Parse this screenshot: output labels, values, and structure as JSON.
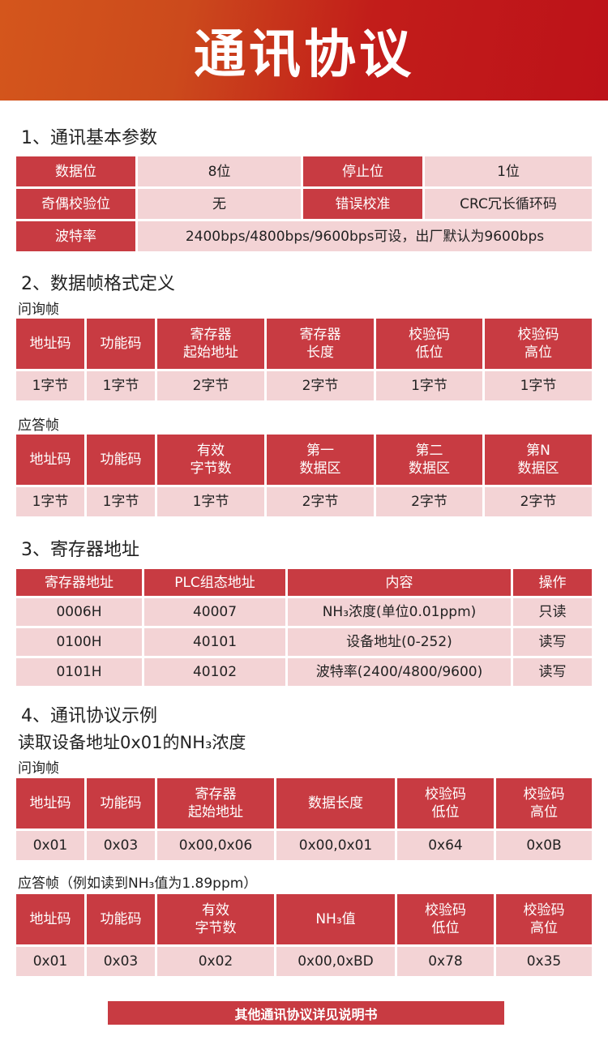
{
  "banner": {
    "title": "通讯协议"
  },
  "section1": {
    "title": "1、通讯基本参数",
    "data_bits_label": "数据位",
    "data_bits_value": "8位",
    "stop_bits_label": "停止位",
    "stop_bits_value": "1位",
    "parity_label": "奇偶校验位",
    "parity_value": "无",
    "error_check_label": "错误校准",
    "error_check_value": "CRC冗长循环码",
    "baud_label": "波特率",
    "baud_value": "2400bps/4800bps/9600bps可设，出厂默认为9600bps"
  },
  "section2": {
    "title": "2、数据帧格式定义",
    "inquiry": {
      "label": "问询帧",
      "headers": [
        "地址码",
        "功能码",
        "寄存器\n起始地址",
        "寄存器\n长度",
        "校验码\n低位",
        "校验码\n高位"
      ],
      "rows": [
        [
          "1字节",
          "1字节",
          "2字节",
          "2字节",
          "1字节",
          "1字节"
        ]
      ]
    },
    "reply": {
      "label": "应答帧",
      "headers": [
        "地址码",
        "功能码",
        "有效\n字节数",
        "第一\n数据区",
        "第二\n数据区",
        "第N\n数据区"
      ],
      "rows": [
        [
          "1字节",
          "1字节",
          "1字节",
          "2字节",
          "2字节",
          "2字节"
        ]
      ]
    }
  },
  "section3": {
    "title": "3、寄存器地址",
    "table": {
      "headers": [
        "寄存器地址",
        "PLC组态地址",
        "内容",
        "操作"
      ],
      "rows": [
        [
          "0006H",
          "40007",
          "NH₃浓度(单位0.01ppm)",
          "只读"
        ],
        [
          "0100H",
          "40101",
          "设备地址(0-252)",
          "读写"
        ],
        [
          "0101H",
          "40102",
          "波特率(2400/4800/9600)",
          "读写"
        ]
      ]
    }
  },
  "section4": {
    "title": "4、通讯协议示例",
    "subtitle": "读取设备地址0x01的NH₃浓度",
    "inquiry": {
      "label": "问询帧",
      "headers": [
        "地址码",
        "功能码",
        "寄存器\n起始地址",
        "数据长度",
        "校验码\n低位",
        "校验码\n高位"
      ],
      "rows": [
        [
          "0x01",
          "0x03",
          "0x00,0x06",
          "0x00,0x01",
          "0x64",
          "0x0B"
        ]
      ]
    },
    "reply": {
      "label": "应答帧（例如读到NH₃值为1.89ppm）",
      "headers": [
        "地址码",
        "功能码",
        "有效\n字节数",
        "NH₃值",
        "校验码\n低位",
        "校验码\n高位"
      ],
      "rows": [
        [
          "0x01",
          "0x03",
          "0x02",
          "0x00,0xBD",
          "0x78",
          "0x35"
        ]
      ]
    }
  },
  "footer": {
    "text": "其他通讯协议详见说明书"
  },
  "colors": {
    "header_cell": "#c83b42",
    "value_cell": "#f3d3d5",
    "banner_start": "#d4561c",
    "banner_end": "#bd1219"
  }
}
